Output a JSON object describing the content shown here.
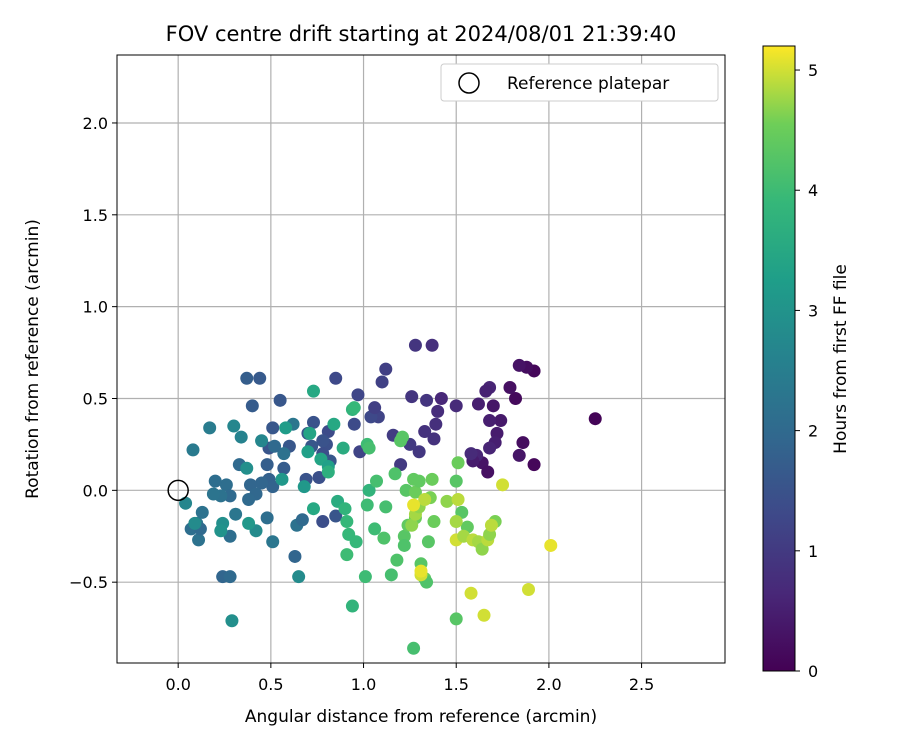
{
  "chart_data": {
    "type": "scatter",
    "title": "FOV centre drift starting at 2024/08/01 21:39:40",
    "xlabel": "Angular distance from reference (arcmin)",
    "ylabel": "Rotation from reference (arcmin)",
    "xlim": [
      -0.33,
      2.95
    ],
    "ylim": [
      -0.94,
      2.37
    ],
    "xticks": [
      "0.0",
      "0.5",
      "1.0",
      "1.5",
      "2.0",
      "2.5"
    ],
    "xtick_values": [
      0,
      0.5,
      1.0,
      1.5,
      2.0,
      2.5
    ],
    "yticks": [
      "−0.5",
      "0.0",
      "0.5",
      "1.0",
      "1.5",
      "2.0"
    ],
    "ytick_values": [
      -0.5,
      0,
      0.5,
      1.0,
      1.5,
      2.0
    ],
    "grid": true,
    "legend": {
      "placement": "top-right",
      "label": "Reference platepar"
    },
    "reference_point": [
      0,
      0
    ],
    "colorbar": {
      "label": "Hours from first FF file",
      "colormap": "viridis",
      "range": [
        0,
        5.2
      ],
      "ticks": [
        "0",
        "1",
        "2",
        "3",
        "4",
        "5"
      ],
      "tick_values": [
        0,
        1,
        2,
        3,
        4,
        5
      ]
    },
    "points": [
      [
        2.25,
        0.39,
        0.05
      ],
      [
        1.92,
        0.65,
        0.1
      ],
      [
        1.88,
        0.67,
        0.2
      ],
      [
        1.84,
        0.68,
        0.3
      ],
      [
        1.82,
        0.5,
        0.15
      ],
      [
        1.79,
        0.56,
        0.25
      ],
      [
        1.86,
        0.26,
        0.2
      ],
      [
        1.84,
        0.19,
        0.35
      ],
      [
        1.92,
        0.14,
        0.1
      ],
      [
        1.74,
        0.38,
        0.4
      ],
      [
        1.72,
        0.31,
        0.45
      ],
      [
        1.71,
        0.26,
        0.5
      ],
      [
        1.7,
        0.46,
        0.35
      ],
      [
        1.68,
        0.38,
        0.5
      ],
      [
        1.68,
        0.56,
        0.6
      ],
      [
        1.66,
        0.54,
        0.55
      ],
      [
        1.62,
        0.47,
        0.5
      ],
      [
        1.64,
        0.15,
        0.3
      ],
      [
        1.67,
        0.1,
        0.25
      ],
      [
        1.68,
        0.23,
        0.6
      ],
      [
        1.61,
        0.19,
        0.6
      ],
      [
        1.59,
        0.16,
        0.45
      ],
      [
        1.58,
        0.2,
        0.7
      ],
      [
        1.5,
        0.46,
        0.7
      ],
      [
        1.42,
        0.5,
        0.65
      ],
      [
        1.4,
        0.43,
        0.75
      ],
      [
        1.39,
        0.36,
        0.8
      ],
      [
        1.38,
        0.28,
        0.85
      ],
      [
        1.37,
        0.79,
        0.8
      ],
      [
        1.28,
        0.79,
        0.9
      ],
      [
        1.34,
        0.49,
        0.9
      ],
      [
        1.33,
        0.32,
        0.85
      ],
      [
        1.3,
        0.21,
        0.95
      ],
      [
        1.26,
        0.51,
        0.9
      ],
      [
        1.25,
        0.25,
        1.0
      ],
      [
        1.2,
        0.14,
        1.0
      ],
      [
        1.16,
        0.3,
        1.05
      ],
      [
        1.12,
        0.66,
        1.1
      ],
      [
        1.1,
        0.59,
        1.15
      ],
      [
        1.08,
        0.4,
        1.2
      ],
      [
        1.04,
        0.4,
        1.3
      ],
      [
        1.06,
        0.45,
        1.1
      ],
      [
        0.97,
        0.52,
        1.25
      ],
      [
        0.95,
        0.36,
        1.35
      ],
      [
        0.98,
        0.21,
        1.2
      ],
      [
        0.85,
        0.61,
        1.3
      ],
      [
        0.81,
        0.32,
        1.35
      ],
      [
        0.8,
        0.25,
        1.45
      ],
      [
        0.78,
        0.2,
        1.4
      ],
      [
        0.78,
        0.27,
        1.5
      ],
      [
        0.73,
        0.37,
        1.5
      ],
      [
        0.7,
        0.31,
        1.55
      ],
      [
        0.72,
        0.24,
        1.6
      ],
      [
        0.69,
        0.06,
        1.5
      ],
      [
        0.76,
        0.07,
        1.45
      ],
      [
        0.78,
        -0.17,
        1.4
      ],
      [
        0.85,
        -0.14,
        1.55
      ],
      [
        0.82,
        0.16,
        1.6
      ],
      [
        0.6,
        0.24,
        1.6
      ],
      [
        0.57,
        0.12,
        1.7
      ],
      [
        0.55,
        0.49,
        1.6
      ],
      [
        0.51,
        0.34,
        1.6
      ],
      [
        0.49,
        0.23,
        1.55
      ],
      [
        0.44,
        0.61,
        1.65
      ],
      [
        0.37,
        0.61,
        1.75
      ],
      [
        0.4,
        0.46,
        1.7
      ],
      [
        0.48,
        0.14,
        1.75
      ],
      [
        0.49,
        0.06,
        1.8
      ],
      [
        0.51,
        0.02,
        1.85
      ],
      [
        0.45,
        0.04,
        1.9
      ],
      [
        0.39,
        0.03,
        1.9
      ],
      [
        0.42,
        -0.02,
        1.95
      ],
      [
        0.38,
        -0.05,
        2.0
      ],
      [
        0.33,
        0.14,
        2.0
      ],
      [
        0.26,
        0.03,
        2.1
      ],
      [
        0.28,
        -0.03,
        2.0
      ],
      [
        0.2,
        0.05,
        2.1
      ],
      [
        0.23,
        -0.03,
        2.2
      ],
      [
        0.19,
        -0.02,
        2.25
      ],
      [
        0.13,
        -0.12,
        2.2
      ],
      [
        0.1,
        -0.18,
        2.3
      ],
      [
        0.07,
        -0.21,
        2.1
      ],
      [
        0.11,
        -0.27,
        2.2
      ],
      [
        0.12,
        -0.21,
        2.0
      ],
      [
        0.08,
        0.22,
        2.4
      ],
      [
        0.17,
        0.34,
        2.45
      ],
      [
        0.31,
        -0.13,
        2.3
      ],
      [
        0.28,
        -0.25,
        2.1
      ],
      [
        0.24,
        -0.47,
        1.9
      ],
      [
        0.28,
        -0.47,
        2.0
      ],
      [
        0.48,
        -0.15,
        2.1
      ],
      [
        0.51,
        -0.28,
        2.3
      ],
      [
        0.63,
        -0.36,
        1.9
      ],
      [
        0.64,
        -0.19,
        2.2
      ],
      [
        0.67,
        -0.16,
        2.0
      ],
      [
        0.62,
        0.36,
        2.3
      ],
      [
        0.57,
        0.2,
        2.2
      ],
      [
        0.52,
        0.24,
        2.0
      ],
      [
        0.34,
        0.29,
        2.6
      ],
      [
        0.3,
        0.35,
        2.7
      ],
      [
        0.45,
        0.27,
        2.7
      ],
      [
        0.65,
        -0.47,
        2.8
      ],
      [
        0.29,
        -0.71,
        2.9
      ],
      [
        0.04,
        -0.07,
        2.7
      ],
      [
        0.09,
        -0.18,
        2.8
      ],
      [
        0.24,
        -0.18,
        2.9
      ],
      [
        0.23,
        -0.22,
        3.0
      ],
      [
        0.42,
        -0.22,
        2.8
      ],
      [
        0.37,
        0.12,
        2.9
      ],
      [
        0.38,
        -0.18,
        3.1
      ],
      [
        0.56,
        0.06,
        3.1
      ],
      [
        0.58,
        0.34,
        3.2
      ],
      [
        0.68,
        0.02,
        3.1
      ],
      [
        0.7,
        0.21,
        3.3
      ],
      [
        0.71,
        0.31,
        3.4
      ],
      [
        0.73,
        0.54,
        3.5
      ],
      [
        0.77,
        0.17,
        3.4
      ],
      [
        0.81,
        0.13,
        3.3
      ],
      [
        0.84,
        0.36,
        3.5
      ],
      [
        0.89,
        0.23,
        3.6
      ],
      [
        0.94,
        0.44,
        3.8
      ],
      [
        0.95,
        0.45,
        3.9
      ],
      [
        0.73,
        -0.1,
        3.5
      ],
      [
        0.81,
        0.1,
        3.7
      ],
      [
        0.86,
        -0.06,
        3.6
      ],
      [
        0.9,
        -0.1,
        3.8
      ],
      [
        0.91,
        -0.17,
        3.9
      ],
      [
        0.92,
        -0.24,
        3.9
      ],
      [
        0.91,
        -0.35,
        4.0
      ],
      [
        0.96,
        -0.28,
        3.9
      ],
      [
        0.94,
        -0.63,
        3.8
      ],
      [
        1.01,
        -0.47,
        4.0
      ],
      [
        1.02,
        0.25,
        4.0
      ],
      [
        1.03,
        0.23,
        4.1
      ],
      [
        1.03,
        0.0,
        3.8
      ],
      [
        1.02,
        -0.08,
        4.0
      ],
      [
        1.07,
        0.05,
        4.1
      ],
      [
        1.06,
        -0.21,
        4.0
      ],
      [
        1.11,
        -0.26,
        4.2
      ],
      [
        1.12,
        -0.09,
        4.1
      ],
      [
        1.15,
        -0.46,
        4.1
      ],
      [
        1.18,
        -0.38,
        4.2
      ],
      [
        1.17,
        0.09,
        4.2
      ],
      [
        1.2,
        0.27,
        4.3
      ],
      [
        1.21,
        0.29,
        4.3
      ],
      [
        1.23,
        0.0,
        4.3
      ],
      [
        1.22,
        -0.25,
        4.3
      ],
      [
        1.24,
        -0.19,
        4.4
      ],
      [
        1.22,
        -0.3,
        4.2
      ],
      [
        1.27,
        0.06,
        4.4
      ],
      [
        1.28,
        -0.01,
        4.5
      ],
      [
        1.3,
        0.05,
        4.4
      ],
      [
        1.28,
        -0.15,
        4.5
      ],
      [
        1.27,
        -0.86,
        4.1
      ],
      [
        1.31,
        -0.4,
        4.3
      ],
      [
        1.33,
        -0.48,
        4.4
      ],
      [
        1.34,
        -0.5,
        4.2
      ],
      [
        1.35,
        -0.28,
        4.3
      ],
      [
        1.37,
        0.06,
        4.5
      ],
      [
        1.36,
        -0.04,
        4.6
      ],
      [
        1.38,
        -0.17,
        4.5
      ],
      [
        1.5,
        0.05,
        4.3
      ],
      [
        1.51,
        0.15,
        4.5
      ],
      [
        1.53,
        -0.12,
        4.3
      ],
      [
        1.56,
        -0.2,
        4.4
      ],
      [
        1.5,
        -0.7,
        4.3
      ],
      [
        1.26,
        -0.19,
        4.7
      ],
      [
        1.28,
        -0.13,
        4.8
      ],
      [
        1.3,
        -0.09,
        4.7
      ],
      [
        1.31,
        -0.46,
        5.0
      ],
      [
        1.33,
        -0.05,
        4.9
      ],
      [
        1.45,
        -0.06,
        4.7
      ],
      [
        1.5,
        -0.17,
        4.8
      ],
      [
        1.51,
        -0.05,
        4.9
      ],
      [
        1.5,
        -0.27,
        5.0
      ],
      [
        1.54,
        -0.25,
        4.8
      ],
      [
        1.59,
        -0.27,
        4.9
      ],
      [
        1.62,
        -0.28,
        4.8
      ],
      [
        1.64,
        -0.32,
        4.7
      ],
      [
        1.67,
        -0.27,
        4.9
      ],
      [
        1.71,
        -0.17,
        4.6
      ],
      [
        1.68,
        -0.24,
        4.7
      ],
      [
        1.69,
        -0.19,
        4.9
      ],
      [
        1.75,
        0.03,
        5.0
      ],
      [
        1.58,
        -0.56,
        5.0
      ],
      [
        1.65,
        -0.68,
        5.0
      ],
      [
        1.89,
        -0.54,
        5.0
      ],
      [
        2.01,
        -0.3,
        5.1
      ],
      [
        1.31,
        -0.44,
        5.1
      ],
      [
        1.27,
        -0.08,
        5.1
      ]
    ]
  }
}
